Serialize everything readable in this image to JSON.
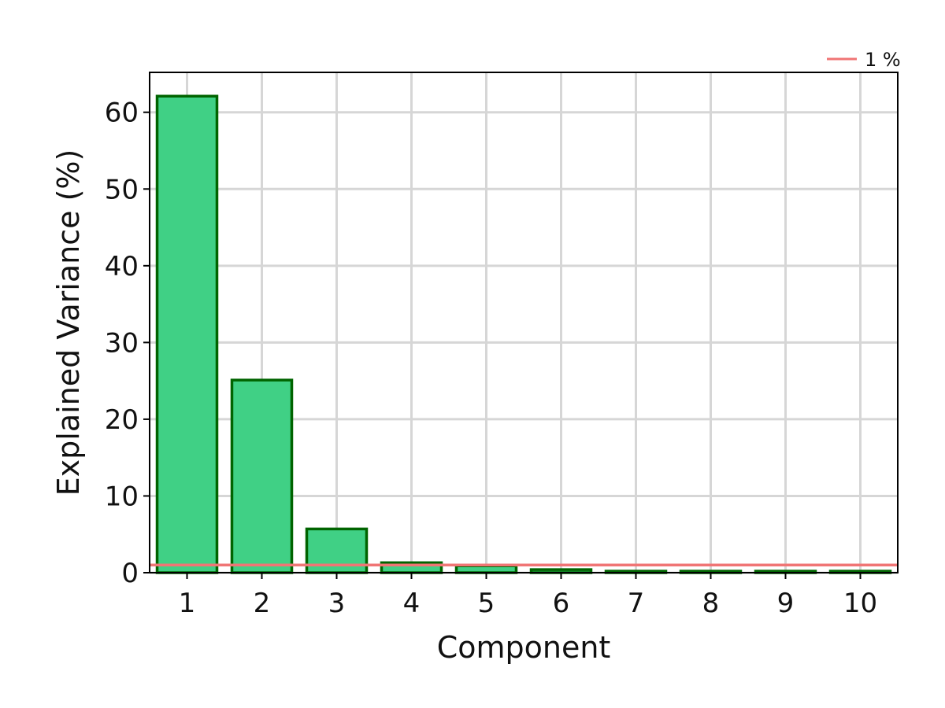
{
  "chart_data": {
    "type": "bar",
    "categories": [
      "1",
      "2",
      "3",
      "4",
      "5",
      "6",
      "7",
      "8",
      "9",
      "10"
    ],
    "values": [
      62.1,
      25.1,
      5.7,
      1.3,
      0.9,
      0.4,
      0.2,
      0.2,
      0.2,
      0.2
    ],
    "xlabel": "Component",
    "ylabel": "Explained Variance (%)",
    "ylim": [
      0,
      65.2
    ],
    "xlim": [
      0.5,
      10.5
    ],
    "yticks": [
      0,
      10,
      20,
      30,
      40,
      50,
      60
    ],
    "grid": true,
    "reference_line": {
      "y": 1,
      "label": "1 %",
      "color": "#f07575"
    },
    "legend": {
      "position": "top-right",
      "entries": [
        "1 %"
      ]
    },
    "colors": {
      "bar_fill": "#40d085",
      "bar_edge": "#006400",
      "grid": "#d6d6d6",
      "axis": "#000000"
    }
  }
}
